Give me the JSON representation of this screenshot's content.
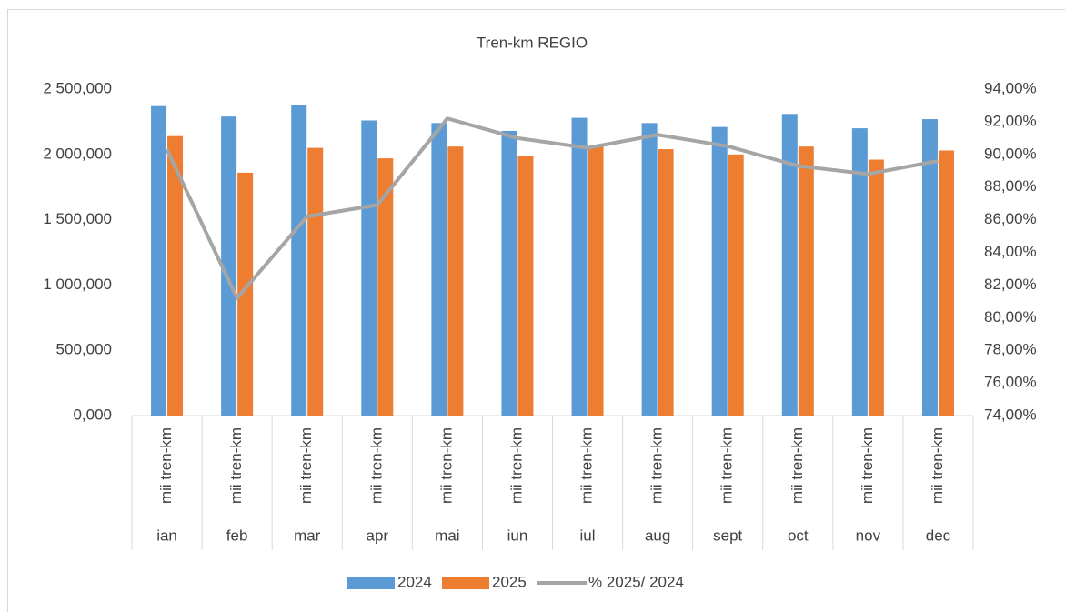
{
  "chart_data": {
    "type": "bar",
    "title": "Tren-km REGIO",
    "categories": [
      "ian",
      "feb",
      "mar",
      "apr",
      "mai",
      "iun",
      "iul",
      "aug",
      "sept",
      "oct",
      "nov",
      "dec"
    ],
    "subcategories": [
      "mii tren-km",
      "mii tren-km",
      "mii tren-km",
      "mii tren-km",
      "mii tren-km",
      "mii tren-km",
      "mii tren-km",
      "mii tren-km",
      "mii tren-km",
      "mii tren-km",
      "mii tren-km",
      "mii tren-km"
    ],
    "series": [
      {
        "name": "2024",
        "color": "#5b9bd5",
        "type": "bar",
        "values": [
          2370000,
          2290000,
          2380000,
          2260000,
          2240000,
          2180000,
          2280000,
          2240000,
          2210000,
          2310000,
          2200000,
          2270000
        ]
      },
      {
        "name": "2025",
        "color": "#ed7d31",
        "type": "bar",
        "values": [
          2140000,
          1860000,
          2050000,
          1970000,
          2060000,
          1990000,
          2060000,
          2040000,
          2000000,
          2060000,
          1960000,
          2030000
        ]
      },
      {
        "name": "% 2025/ 2024",
        "color": "#a5a5a5",
        "type": "line",
        "axis": "y2",
        "values": [
          90.3,
          81.2,
          86.2,
          86.9,
          92.2,
          91.0,
          90.4,
          91.2,
          90.5,
          89.3,
          88.8,
          89.6
        ]
      }
    ],
    "ylim": [
      0,
      2500000
    ],
    "yticks": [
      {
        "value": 0,
        "label": "0,000"
      },
      {
        "value": 500000,
        "label": "500,000"
      },
      {
        "value": 1000000,
        "label": "1 000,000"
      },
      {
        "value": 1500000,
        "label": "1 500,000"
      },
      {
        "value": 2000000,
        "label": "2 000,000"
      },
      {
        "value": 2500000,
        "label": "2 500,000"
      }
    ],
    "y2lim": [
      74,
      94
    ],
    "y2ticks": [
      {
        "value": 74,
        "label": "74,00%"
      },
      {
        "value": 76,
        "label": "76,00%"
      },
      {
        "value": 78,
        "label": "78,00%"
      },
      {
        "value": 80,
        "label": "80,00%"
      },
      {
        "value": 82,
        "label": "82,00%"
      },
      {
        "value": 84,
        "label": "84,00%"
      },
      {
        "value": 86,
        "label": "86,00%"
      },
      {
        "value": 88,
        "label": "88,00%"
      },
      {
        "value": 90,
        "label": "90,00%"
      },
      {
        "value": 92,
        "label": "92,00%"
      },
      {
        "value": 94,
        "label": "94,00%"
      }
    ],
    "legend": "bottom"
  }
}
